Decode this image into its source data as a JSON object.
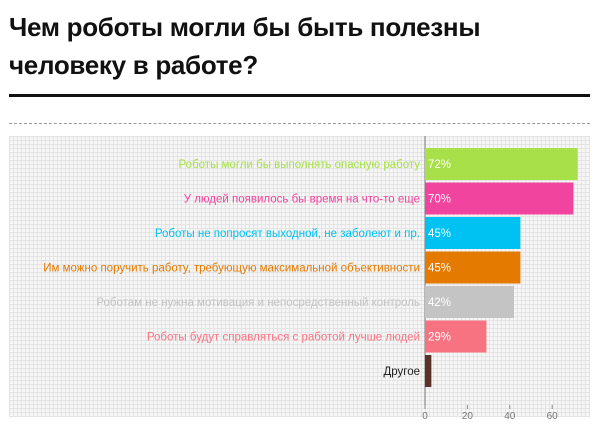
{
  "title": "Чем роботы могли бы быть полезны человеку в работе?",
  "chart_data": {
    "type": "bar",
    "orientation": "horizontal",
    "title": "Чем роботы могли бы быть полезны человеку в работе?",
    "xlabel": "",
    "ylabel": "",
    "xlim": [
      0,
      70
    ],
    "xticks": [
      0,
      20,
      40,
      60
    ],
    "grid": true,
    "categories": [
      "Роботы могли бы выполнять опасную работу",
      "У людей появилось бы время на что-то еще",
      "Роботы не попросят выходной, не заболеют и пр.",
      "Им можно поручить работу, требующую максимальной объективности",
      "Роботам не нужна мотивация и непосредственный контроль",
      "Роботы будут справляться с работой лучше людей",
      "Другое"
    ],
    "values": [
      72,
      70,
      45,
      45,
      42,
      29,
      3
    ],
    "value_labels": [
      "72%",
      "70%",
      "45%",
      "45%",
      "42%",
      "29%",
      ""
    ],
    "colors": [
      "#a8e04a",
      "#f0449e",
      "#00c2f2",
      "#e57a00",
      "#c4c4c4",
      "#f87382",
      "#5a3326"
    ]
  }
}
